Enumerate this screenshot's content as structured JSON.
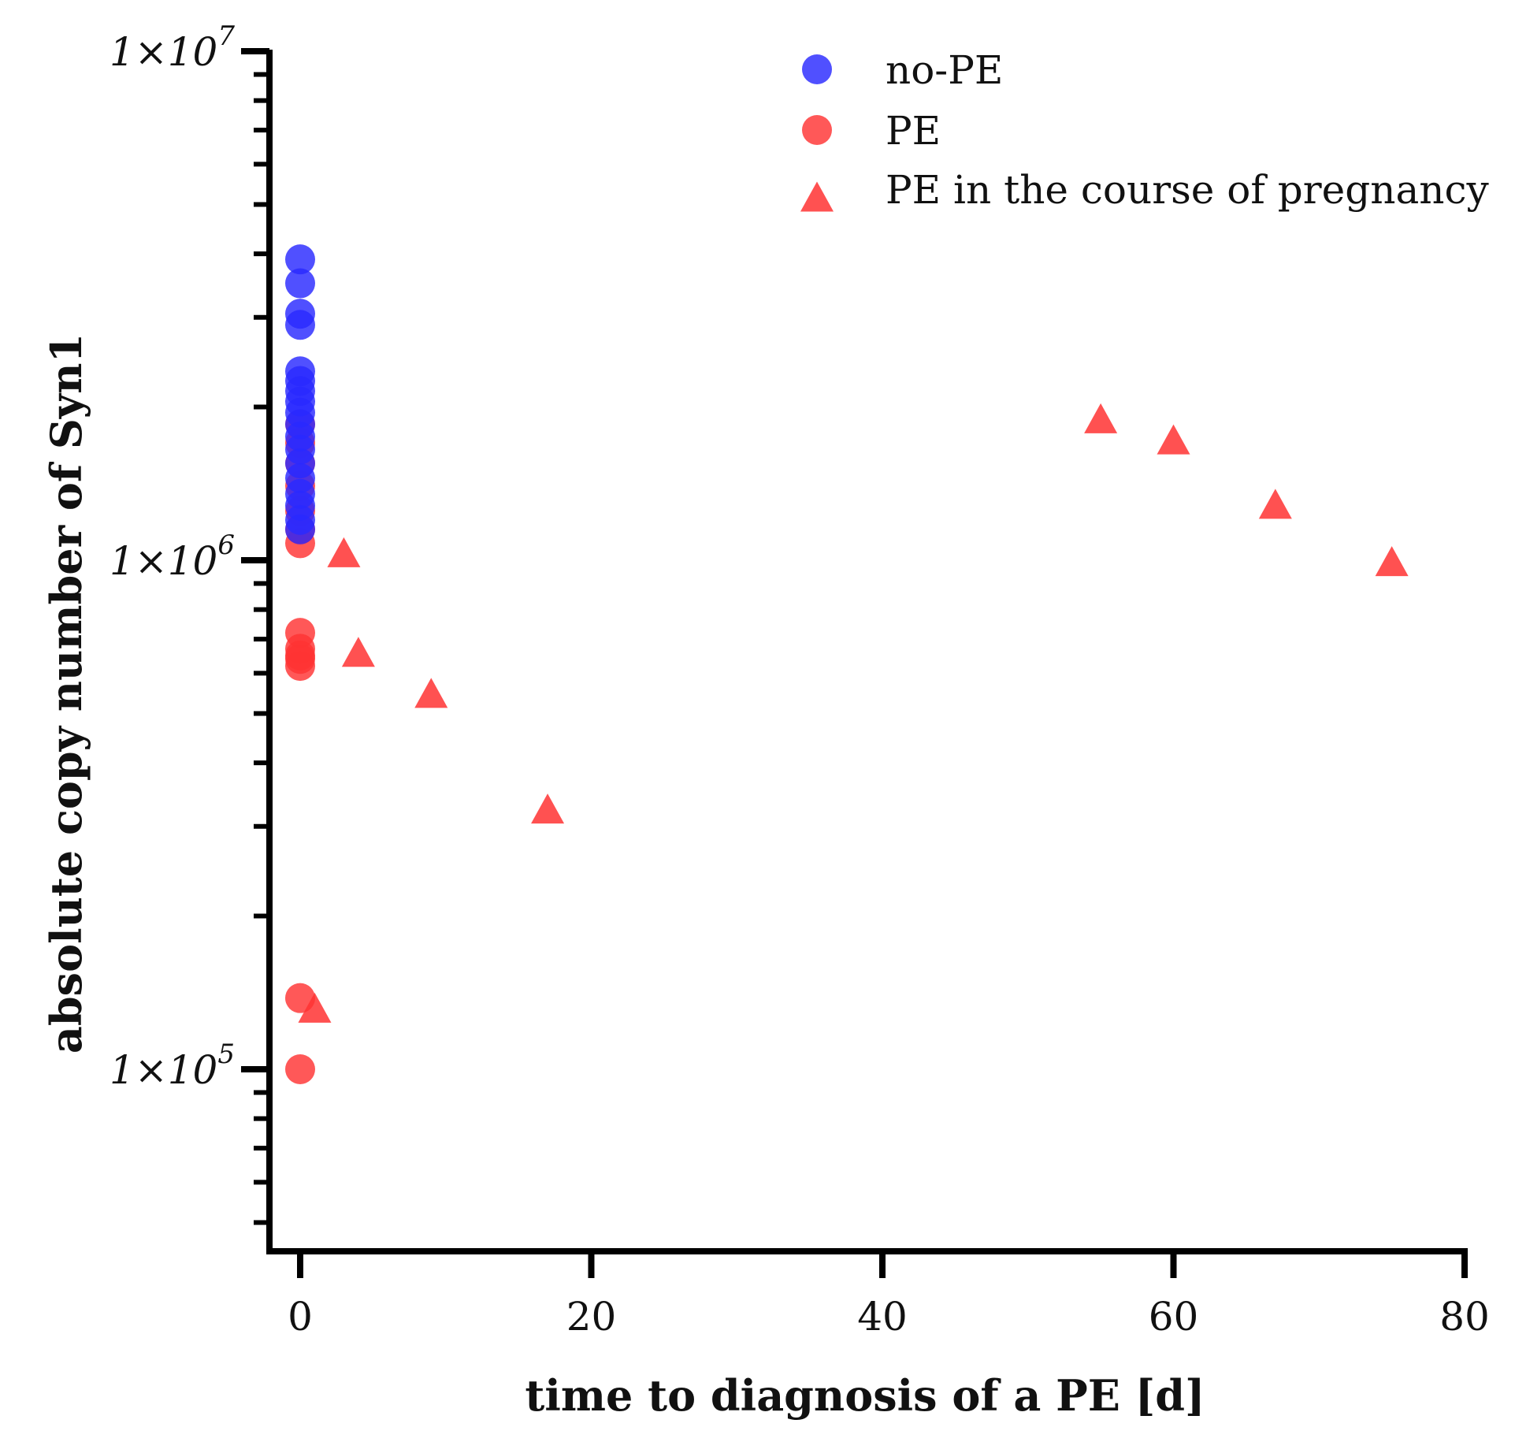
{
  "chart_data": {
    "type": "scatter",
    "title": "",
    "xlabel": "time to diagnosis of a PE [d]",
    "ylabel": "absolute copy number of Syn1",
    "xlim": [
      -2,
      80
    ],
    "x_ticks": [
      0,
      20,
      40,
      60,
      80
    ],
    "x_tick_labels": [
      "0",
      "20",
      "40",
      "60",
      "80"
    ],
    "yscale": "log",
    "ylim": [
      45000,
      10000000
    ],
    "y_ticks": [
      100000,
      1000000,
      10000000
    ],
    "y_tick_labels": [
      {
        "base": "1×10",
        "exp": "5"
      },
      {
        "base": "1×10",
        "exp": "6"
      },
      {
        "base": "1×10",
        "exp": "7"
      }
    ],
    "legend_position": "top-right",
    "colors": {
      "blue": "#2a2aff",
      "red": "#ff3333"
    },
    "series": [
      {
        "name": "PE",
        "marker": "circle",
        "color": "#ff3333",
        "points": [
          {
            "x": 0,
            "y": 100000
          },
          {
            "x": 0,
            "y": 138000
          },
          {
            "x": 0,
            "y": 620000
          },
          {
            "x": 0,
            "y": 640000
          },
          {
            "x": 0,
            "y": 650000
          },
          {
            "x": 0,
            "y": 670000
          },
          {
            "x": 0,
            "y": 720000
          },
          {
            "x": 0,
            "y": 1080000
          },
          {
            "x": 0,
            "y": 1150000
          },
          {
            "x": 0,
            "y": 1250000
          },
          {
            "x": 0,
            "y": 1400000
          },
          {
            "x": 0,
            "y": 1550000
          },
          {
            "x": 0,
            "y": 1700000
          },
          {
            "x": 0,
            "y": 1850000
          }
        ]
      },
      {
        "name": "no-PE",
        "marker": "circle",
        "color": "#2a2aff",
        "points": [
          {
            "x": 0,
            "y": 1150000
          },
          {
            "x": 0,
            "y": 1200000
          },
          {
            "x": 0,
            "y": 1280000
          },
          {
            "x": 0,
            "y": 1350000
          },
          {
            "x": 0,
            "y": 1450000
          },
          {
            "x": 0,
            "y": 1550000
          },
          {
            "x": 0,
            "y": 1650000
          },
          {
            "x": 0,
            "y": 1750000
          },
          {
            "x": 0,
            "y": 1850000
          },
          {
            "x": 0,
            "y": 1950000
          },
          {
            "x": 0,
            "y": 2050000
          },
          {
            "x": 0,
            "y": 2150000
          },
          {
            "x": 0,
            "y": 2250000
          },
          {
            "x": 0,
            "y": 2350000
          },
          {
            "x": 0,
            "y": 2900000
          },
          {
            "x": 0,
            "y": 3050000
          },
          {
            "x": 0,
            "y": 3500000
          },
          {
            "x": 0,
            "y": 3900000
          }
        ]
      },
      {
        "name": "PE in the course of pregnancy",
        "marker": "triangle",
        "color": "#ff3333",
        "points": [
          {
            "x": 1,
            "y": 130000
          },
          {
            "x": 3,
            "y": 1020000
          },
          {
            "x": 4,
            "y": 650000
          },
          {
            "x": 9,
            "y": 540000
          },
          {
            "x": 17,
            "y": 320000
          },
          {
            "x": 55,
            "y": 1870000
          },
          {
            "x": 60,
            "y": 1700000
          },
          {
            "x": 67,
            "y": 1270000
          },
          {
            "x": 75,
            "y": 980000
          }
        ]
      }
    ],
    "legend_order": [
      "no-PE",
      "PE",
      "PE in the course of pregnancy"
    ]
  }
}
